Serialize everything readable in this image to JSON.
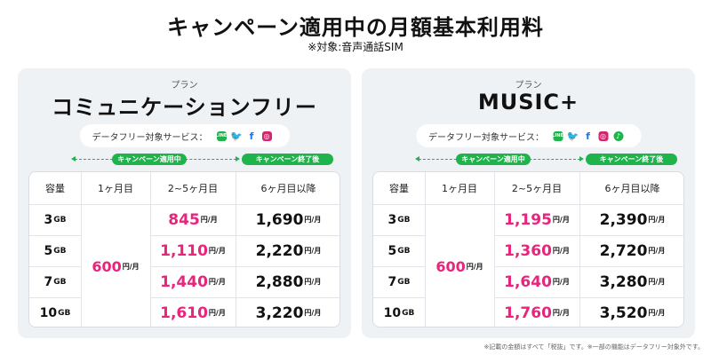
{
  "title": "キャンペーン適用中の月額基本利用料",
  "subtitle": "※対象:音声通話SIM",
  "footnote": "※記載の金額はすべて「税抜」です。※一部の機能はデータフリー対象外です。",
  "labels": {
    "plan": "プラン",
    "data_free": "データフリー対象サービス：",
    "campaign_active": "キャンペーン適用中",
    "campaign_after": "キャンペーン終了後"
  },
  "headers": {
    "capacity": "容量",
    "month1": "1ヶ月目",
    "months2_5": "2~5ヶ月目",
    "month6plus": "6ヶ月目以降"
  },
  "units": {
    "gb": "GB",
    "per_month": "円/月"
  },
  "plans": [
    {
      "name": "コミュニケーションフリー",
      "services": [
        "line-icon",
        "twitter-icon",
        "facebook-icon",
        "instagram-icon"
      ],
      "first_month": "600",
      "rows": [
        {
          "capacity": "3",
          "campaign": "845",
          "after": "1,690"
        },
        {
          "capacity": "5",
          "campaign": "1,110",
          "after": "2,220"
        },
        {
          "capacity": "7",
          "campaign": "1,440",
          "after": "2,880"
        },
        {
          "capacity": "10",
          "campaign": "1,610",
          "after": "3,220"
        }
      ]
    },
    {
      "name": "MUSIC+",
      "services": [
        "line-icon",
        "twitter-icon",
        "facebook-icon",
        "instagram-icon",
        "line-music-icon"
      ],
      "first_month": "600",
      "rows": [
        {
          "capacity": "3",
          "campaign": "1,195",
          "after": "2,390"
        },
        {
          "capacity": "5",
          "campaign": "1,360",
          "after": "2,720"
        },
        {
          "capacity": "7",
          "campaign": "1,640",
          "after": "3,280"
        },
        {
          "capacity": "10",
          "campaign": "1,760",
          "after": "3,520"
        }
      ]
    }
  ],
  "colors": {
    "campaign_green": "#1fb44b",
    "campaign_price": "#e8247c",
    "card_bg": "#eff2f5"
  }
}
